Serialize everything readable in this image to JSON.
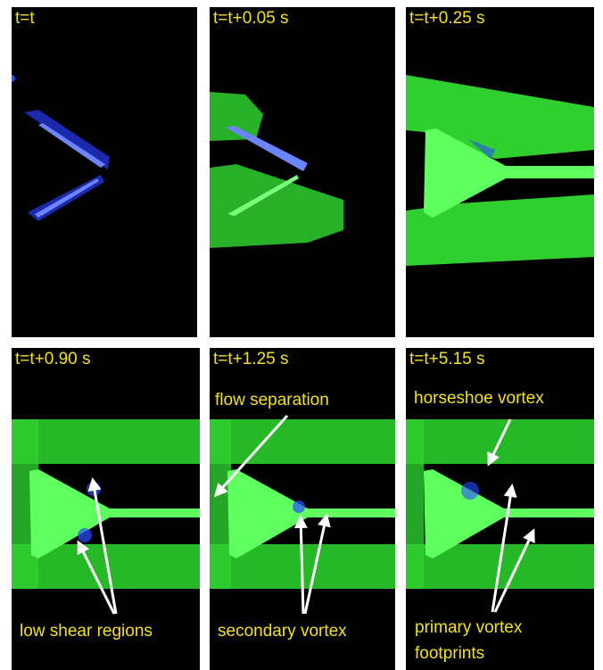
{
  "panels": [
    {
      "label": "t=t"
    },
    {
      "label": "t=t+0.05 s"
    },
    {
      "label": "t=t+0.25 s"
    },
    {
      "label": "t=t+0.90 s"
    },
    {
      "label": "t=t+1.25 s"
    },
    {
      "label": "t=t+5.15 s"
    }
  ],
  "annotations": {
    "low_shear": "low shear regions",
    "flow_separation": "flow separation",
    "secondary_vortex": "secondary vortex",
    "horseshoe_vortex": "horseshoe vortex",
    "primary_vortex_line1": "primary vortex",
    "primary_vortex_line2": "footprints"
  },
  "colors": {
    "label_text": "#f4e11a",
    "flow_green": "#33dd33",
    "dye_blue": "#2b4dff",
    "background": "#000000"
  }
}
